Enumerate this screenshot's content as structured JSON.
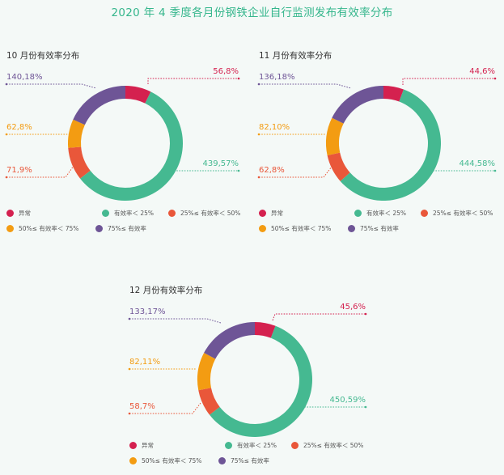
{
  "title": "2020 年 4 季度各月份钢铁企业自行监测发布有效率分布",
  "colors": {
    "abnormal": "#d4214f",
    "lt25": "#45b991",
    "25to50": "#e9573a",
    "50to75": "#f39c12",
    "gte75": "#6e5596",
    "title": "#35b68c"
  },
  "legend": [
    {
      "label": "异常",
      "color": "#d4214f"
    },
    {
      "label": "有效率＜ 25%",
      "color": "#45b991"
    },
    {
      "label": "25%≤ 有效率＜ 50%",
      "color": "#e9573a"
    },
    {
      "label": "50%≤ 有效率＜ 75%",
      "color": "#f39c12"
    },
    {
      "label": "75%≤ 有效率",
      "color": "#6e5596"
    }
  ],
  "chart_data": [
    {
      "type": "pie",
      "title": "10 月份有效率分布",
      "categories": [
        "异常",
        "有效率＜ 25%",
        "25%≤ 有效率＜ 50%",
        "50%≤ 有效率＜ 75%",
        "75%≤ 有效率"
      ],
      "counts": [
        56,
        439,
        71,
        62,
        140
      ],
      "percents": [
        8,
        57,
        9,
        8,
        18
      ],
      "labels": [
        "56,8%",
        "439,57%",
        "71,9%",
        "62,8%",
        "140,18%"
      ]
    },
    {
      "type": "pie",
      "title": "11 月份有效率分布",
      "categories": [
        "异常",
        "有效率＜ 25%",
        "25%≤ 有效率＜ 50%",
        "50%≤ 有效率＜ 75%",
        "75%≤ 有效率"
      ],
      "counts": [
        44,
        444,
        62,
        82,
        136
      ],
      "percents": [
        6,
        58,
        8,
        10,
        18
      ],
      "labels": [
        "44,6%",
        "444,58%",
        "62,8%",
        "82,10%",
        "136,18%"
      ]
    },
    {
      "type": "pie",
      "title": "12 月份有效率分布",
      "categories": [
        "异常",
        "有效率＜ 25%",
        "25%≤ 有效率＜ 50%",
        "50%≤ 有效率＜ 75%",
        "75%≤ 有效率"
      ],
      "counts": [
        45,
        450,
        58,
        82,
        133
      ],
      "percents": [
        6,
        59,
        7,
        11,
        17
      ],
      "labels": [
        "45,6%",
        "450,59%",
        "58,7%",
        "82,11%",
        "133,17%"
      ]
    }
  ]
}
